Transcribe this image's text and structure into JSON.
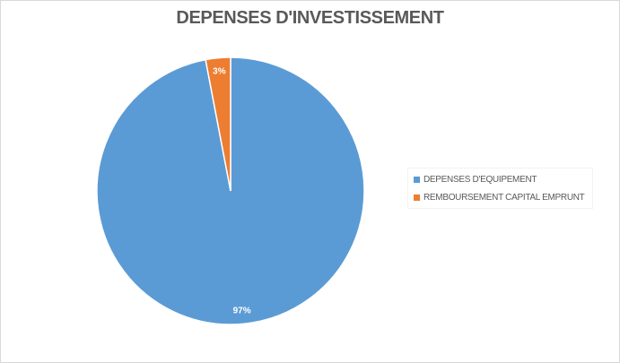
{
  "chart_data": {
    "type": "pie",
    "title": "DEPENSES D'INVESTISSEMENT",
    "categories": [
      "DEPENSES D'EQUIPEMENT",
      "REMBOURSEMENT CAPITAL EMPRUNT"
    ],
    "values": [
      97,
      3
    ],
    "data_labels": [
      "97%",
      "3%"
    ],
    "colors": [
      "#5b9bd5",
      "#ed7d31"
    ],
    "legend_position": "right"
  }
}
